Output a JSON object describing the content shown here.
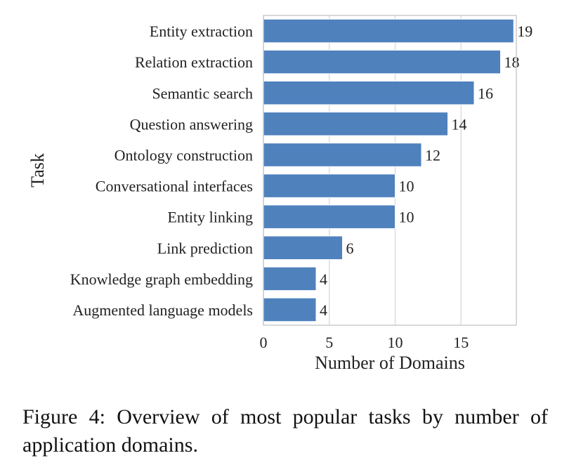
{
  "chart_data": {
    "type": "bar",
    "orientation": "horizontal",
    "categories": [
      "Entity extraction",
      "Relation extraction",
      "Semantic search",
      "Question answering",
      "Ontology construction",
      "Conversational interfaces",
      "Entity linking",
      "Link prediction",
      "Knowledge graph embedding",
      "Augmented language models"
    ],
    "values": [
      19,
      18,
      16,
      14,
      12,
      10,
      10,
      6,
      4,
      4
    ],
    "xlabel": "Number of Domains",
    "ylabel": "Task",
    "xlim": [
      0,
      19.2
    ],
    "xticks": [
      0,
      5,
      10,
      15
    ],
    "grid": "vertical",
    "data_labels": true,
    "bar_color": "#4f81bd"
  },
  "caption": "Figure 4: Overview of most popular tasks by number of application domains."
}
